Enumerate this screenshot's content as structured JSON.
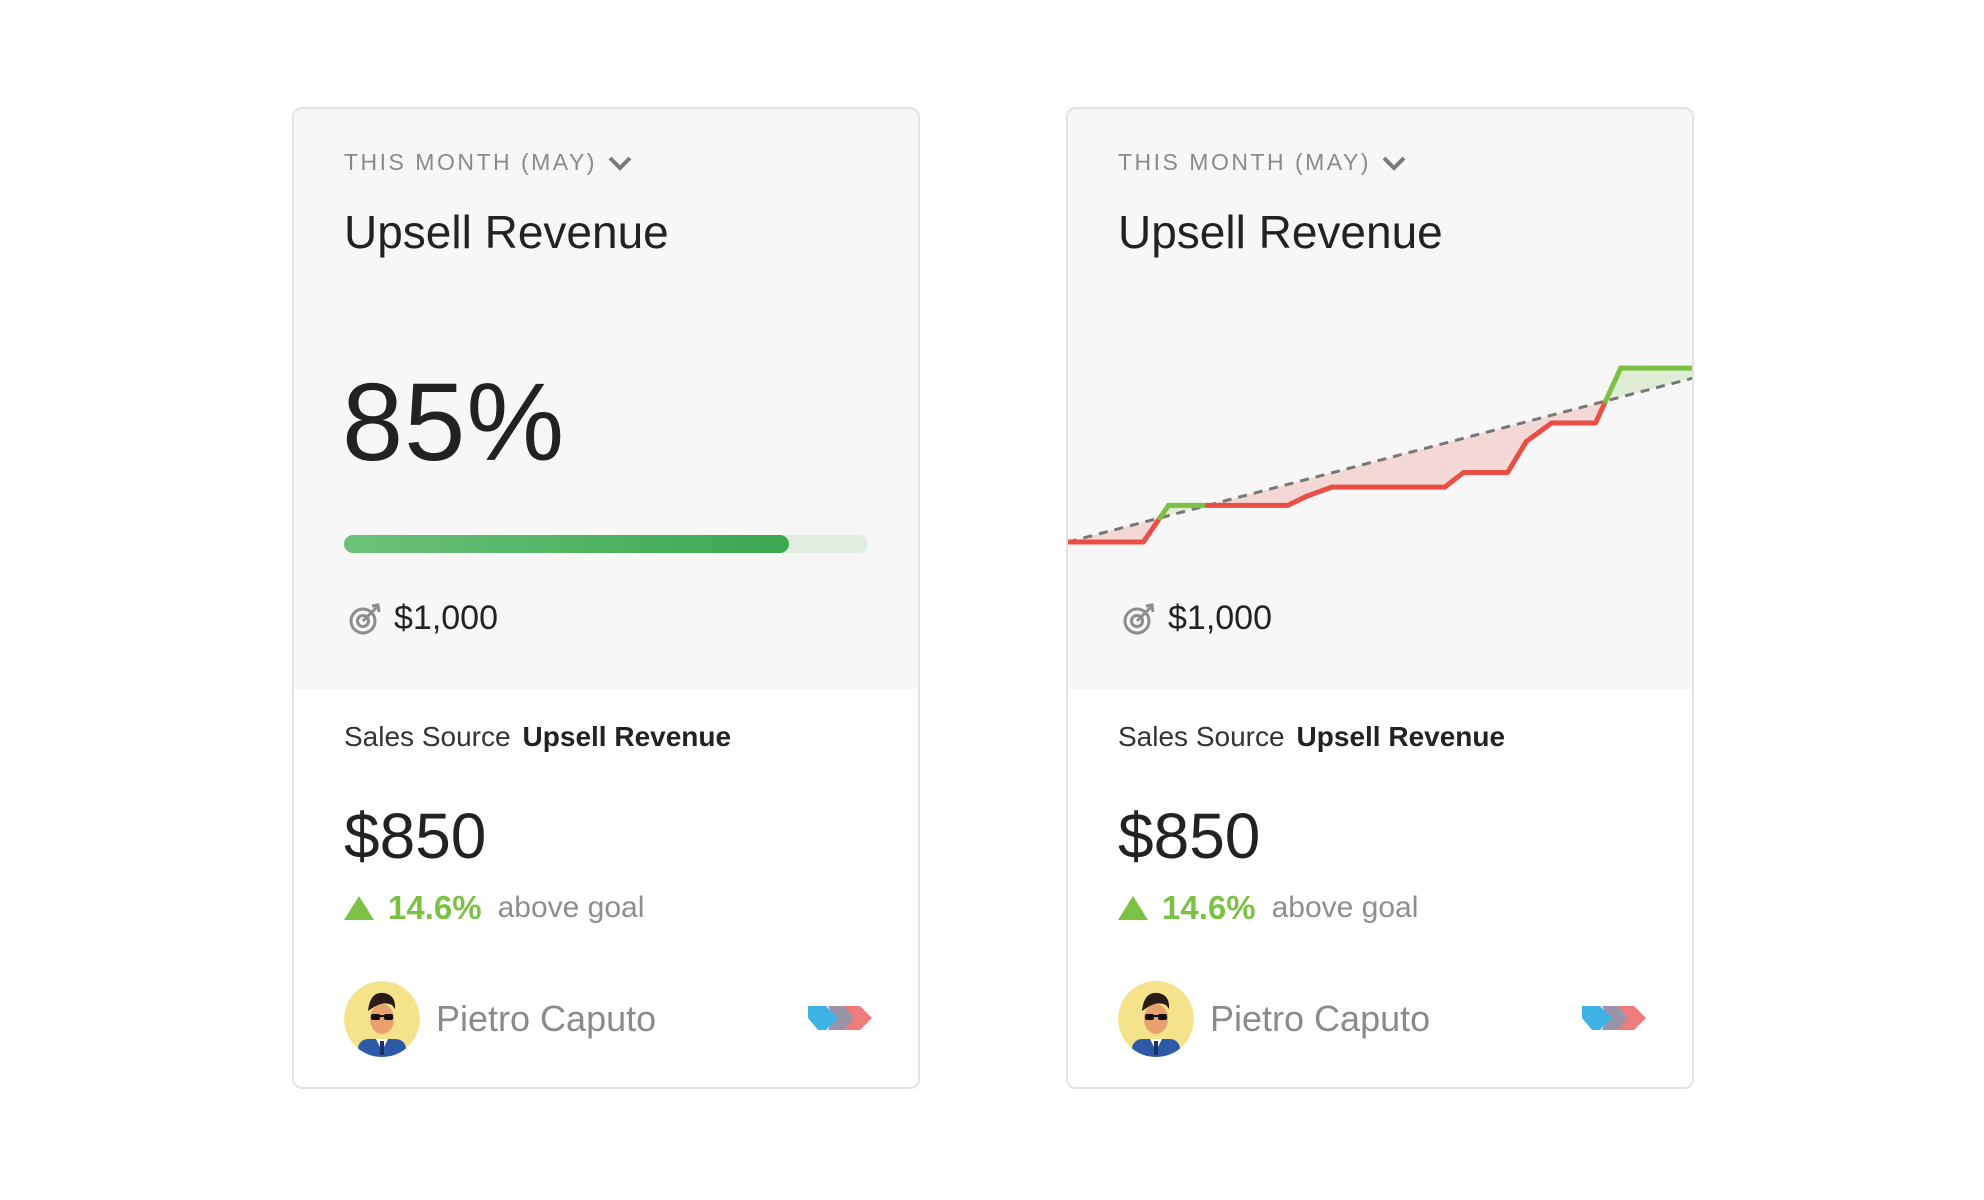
{
  "cards": [
    {
      "period": "THIS MONTH (MAY)",
      "title": "Upsell Revenue",
      "percent_label": "85%",
      "progress": 0.85,
      "goal": "$1,000",
      "source_label": "Sales Source",
      "source_value": "Upsell Revenue",
      "amount": "$850",
      "delta_value": "14.6%",
      "delta_text": "above goal",
      "owner_name": "Pietro Caputo"
    },
    {
      "period": "THIS MONTH (MAY)",
      "title": "Upsell Revenue",
      "goal": "$1,000",
      "source_label": "Sales Source",
      "source_value": "Upsell Revenue",
      "amount": "$850",
      "delta_value": "14.6%",
      "delta_text": "above goal",
      "owner_name": "Pietro Caputo"
    }
  ],
  "colors": {
    "above": "#7bc144",
    "below": "#ea4f45",
    "target": "#777777",
    "progress": "#3aa84f"
  },
  "icons": [
    "chevron-down-icon",
    "target-icon",
    "avatar",
    "tags-icon",
    "up-triangle-icon"
  ],
  "chart_data": {
    "type": "line",
    "x": [
      0,
      0.12,
      0.16,
      0.22,
      0.35,
      0.38,
      0.42,
      0.6,
      0.63,
      0.7,
      0.73,
      0.77,
      0.8,
      0.84,
      0.88,
      0.91,
      1.0
    ],
    "series": [
      {
        "values": [
          0,
          0,
          0.2,
          0.2,
          0.2,
          0.25,
          0.3,
          0.3,
          0.38,
          0.38,
          0.55,
          0.65,
          0.65,
          0.65,
          0.95,
          0.95,
          0.95
        ]
      }
    ],
    "target_line": [
      0,
      0.9
    ]
  }
}
